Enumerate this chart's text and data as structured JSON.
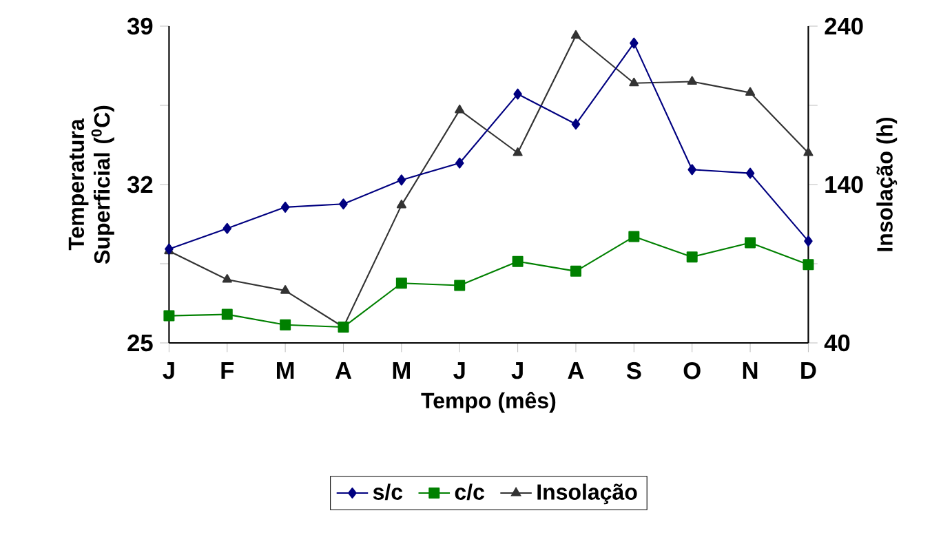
{
  "chart_data": {
    "type": "line",
    "categories": [
      "J",
      "F",
      "M",
      "A",
      "M",
      "J",
      "J",
      "A",
      "S",
      "O",
      "N",
      "D"
    ],
    "xlabel": "Tempo (mês)",
    "ylabel": "Temperatura Superficial ($^{0}$C)",
    "y2label": "Insolação (h)",
    "series": [
      {
        "name": "s/c",
        "color": "#000080",
        "marker": "diamond",
        "values": [
          29.15,
          30.06,
          31.0,
          31.14,
          32.2,
          32.95,
          36.0,
          34.67,
          38.25,
          32.66,
          32.5,
          29.5
        ]
      },
      {
        "name": "c/c",
        "color": "#008000",
        "marker": "square",
        "values": [
          26.2,
          26.26,
          25.8,
          25.7,
          27.64,
          27.54,
          28.6,
          28.17,
          29.7,
          28.8,
          29.43,
          28.46
        ]
      },
      {
        "name": "Insolação",
        "color": "#333333",
        "marker": "triangle",
        "axis": "y2",
        "values": [
          98,
          80,
          73,
          50,
          127,
          187,
          160,
          234,
          204,
          205,
          198,
          160
        ]
      }
    ],
    "ylim": [
      25,
      39
    ],
    "yticks": [
      25,
      {
        "value": 28.5,
        "label": null
      },
      32,
      {
        "value": 35.5,
        "label": null
      },
      39
    ],
    "y2lim": [
      40,
      240
    ],
    "y2ticks": [
      40,
      {
        "value": 90,
        "label": null
      },
      140,
      {
        "value": 190,
        "label": null
      },
      240
    ],
    "grid": false,
    "legend": "bottom"
  }
}
